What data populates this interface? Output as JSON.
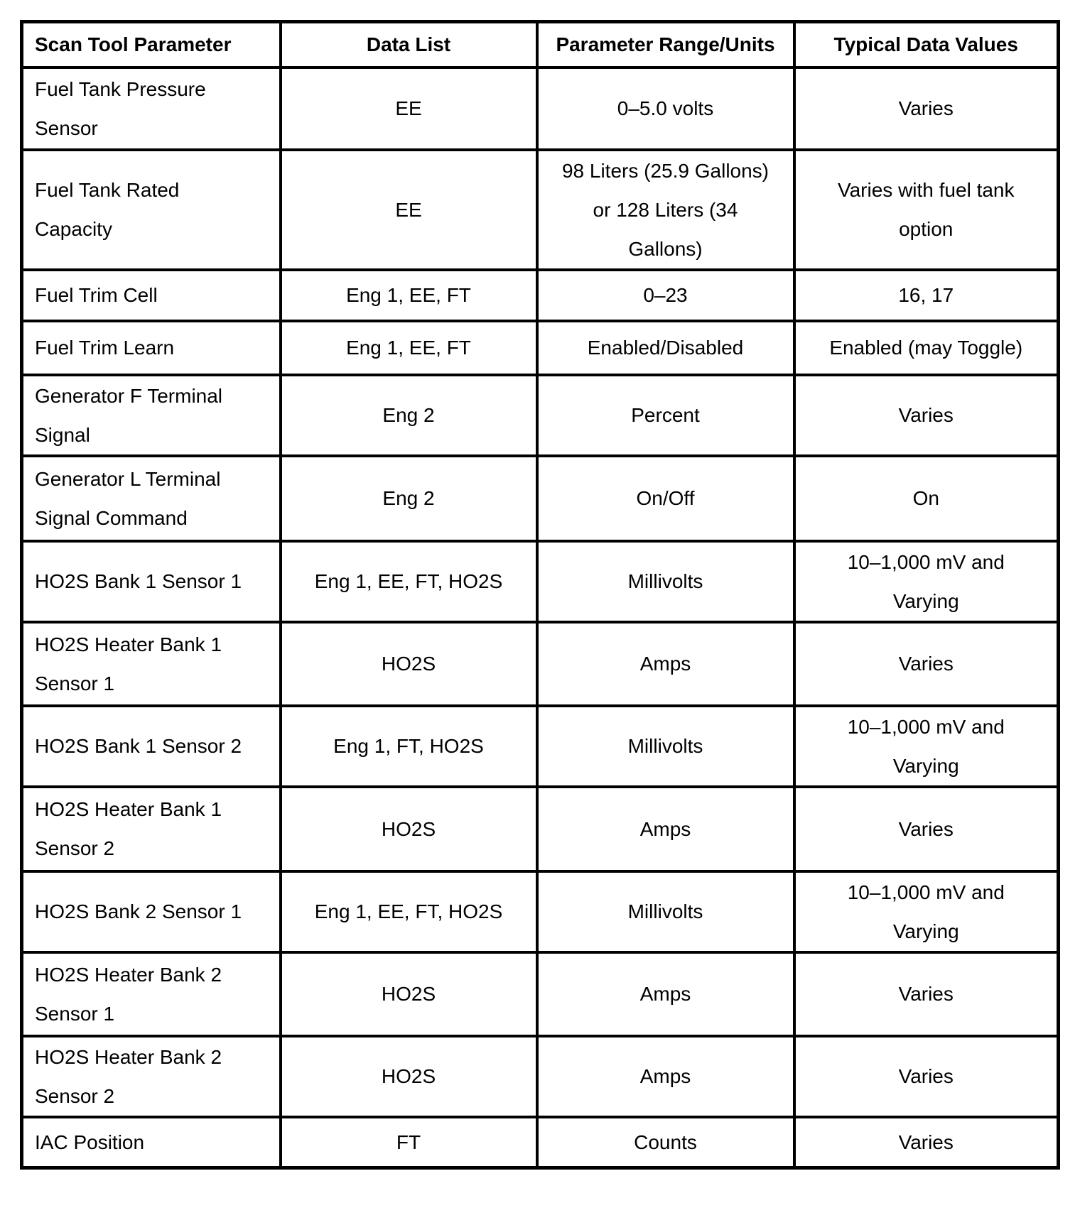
{
  "table": {
    "columns": [
      "Scan Tool Parameter",
      "Data List",
      "Parameter Range/Units",
      "Typical Data Values"
    ],
    "rows": [
      {
        "parameter": "Fuel Tank Pressure\nSensor",
        "data_list": "EE",
        "range_units": "0–5.0 volts",
        "typical_values": "Varies"
      },
      {
        "parameter": "Fuel Tank Rated\nCapacity",
        "data_list": "EE",
        "range_units": "98 Liters (25.9 Gallons)\nor 128 Liters (34\nGallons)",
        "typical_values": "Varies with fuel tank\noption"
      },
      {
        "parameter": "Fuel Trim Cell",
        "data_list": "Eng 1, EE, FT",
        "range_units": "0–23",
        "typical_values": "16, 17"
      },
      {
        "parameter": "Fuel Trim Learn",
        "data_list": "Eng 1, EE, FT",
        "range_units": "Enabled/Disabled",
        "typical_values": "Enabled (may Toggle)"
      },
      {
        "parameter": "Generator F Terminal\nSignal",
        "data_list": "Eng 2",
        "range_units": "Percent",
        "typical_values": "Varies"
      },
      {
        "parameter": "Generator L Terminal\nSignal Command",
        "data_list": "Eng 2",
        "range_units": "On/Off",
        "typical_values": "On"
      },
      {
        "parameter": "HO2S Bank 1 Sensor 1",
        "data_list": "Eng 1, EE, FT, HO2S",
        "range_units": "Millivolts",
        "typical_values": "10–1,000 mV and\nVarying"
      },
      {
        "parameter": "HO2S Heater Bank 1\nSensor 1",
        "data_list": "HO2S",
        "range_units": "Amps",
        "typical_values": "Varies"
      },
      {
        "parameter": "HO2S Bank 1 Sensor 2",
        "data_list": "Eng 1, FT, HO2S",
        "range_units": "Millivolts",
        "typical_values": "10–1,000 mV and\nVarying"
      },
      {
        "parameter": "HO2S Heater Bank 1\nSensor 2",
        "data_list": "HO2S",
        "range_units": "Amps",
        "typical_values": "Varies"
      },
      {
        "parameter": "HO2S Bank 2 Sensor 1",
        "data_list": "Eng 1, EE, FT, HO2S",
        "range_units": "Millivolts",
        "typical_values": "10–1,000 mV and\nVarying"
      },
      {
        "parameter": "HO2S Heater Bank 2\nSensor 1",
        "data_list": "HO2S",
        "range_units": "Amps",
        "typical_values": "Varies"
      },
      {
        "parameter": "HO2S Heater Bank 2\nSensor 2",
        "data_list": "HO2S",
        "range_units": "Amps",
        "typical_values": "Varies"
      },
      {
        "parameter": "IAC Position",
        "data_list": "FT",
        "range_units": "Counts",
        "typical_values": "Varies"
      }
    ]
  }
}
